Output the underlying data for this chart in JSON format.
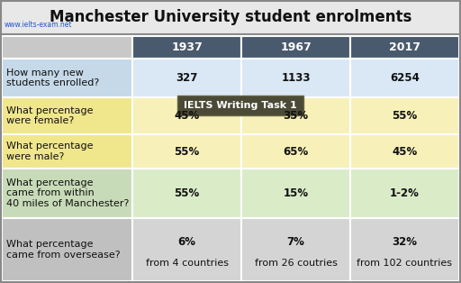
{
  "title": "Manchester University student enrolments",
  "watermark": "www.ielts-exam.net",
  "tooltip": "IELTS Writing Task 1",
  "col_headers": [
    "1937",
    "1967",
    "2017"
  ],
  "col_header_bg": "#4a5a6e",
  "col_header_fg": "#ffffff",
  "rows": [
    {
      "question": "How many new\nstudents enrolled?",
      "values": [
        "327",
        "1133",
        "6254"
      ],
      "q_bg": "#c5d9e8",
      "v_bg": "#dae8f5"
    },
    {
      "question": "What percentage\nwere female?",
      "values": [
        "45%",
        "35%",
        "55%"
      ],
      "q_bg": "#f0e68c",
      "v_bg": "#f7f0b8"
    },
    {
      "question": "What percentage\nwere male?",
      "values": [
        "55%",
        "65%",
        "45%"
      ],
      "q_bg": "#f0e68c",
      "v_bg": "#f7f0b8"
    },
    {
      "question": "What percentage\ncame from within\n40 miles of Manchester?",
      "values": [
        "55%",
        "15%",
        "1-2%"
      ],
      "q_bg": "#c8dbb8",
      "v_bg": "#daebc8"
    },
    {
      "question": "What percentage\ncame from oversease?",
      "values_line1": [
        "6%",
        "7%",
        "32%"
      ],
      "values_line2": [
        "from 4 countries",
        "from 26 coutries",
        "from 102 countries"
      ],
      "q_bg": "#c0c0c0",
      "v_bg": "#d4d4d4"
    }
  ],
  "title_bg": "#e8e8e8",
  "outer_border": "#888888",
  "title_fontsize": 12,
  "header_fontsize": 9,
  "cell_fontsize": 8.5,
  "q_fontsize": 8,
  "watermark_fontsize": 5.5,
  "tooltip_bg": "#4a4a36",
  "tooltip_fg": "#ffffff",
  "tooltip_fontsize": 8
}
